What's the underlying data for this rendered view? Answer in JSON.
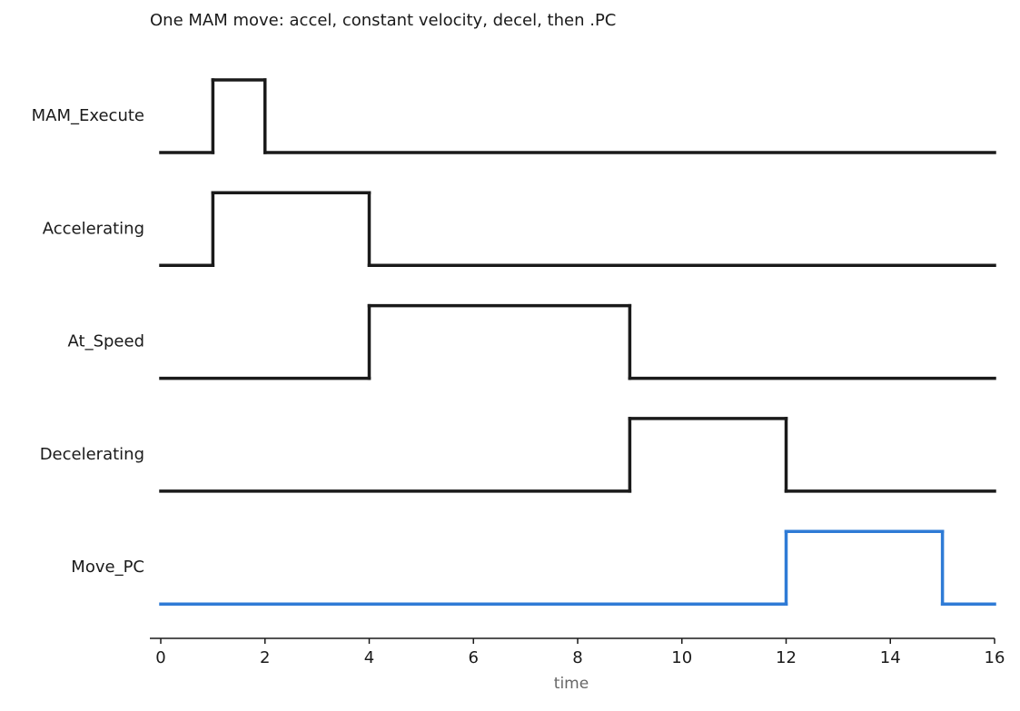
{
  "chart_data": {
    "type": "timing",
    "title": "One MAM move: accel, constant velocity, decel, then .PC",
    "x_label": "time",
    "xlim": [
      0,
      16
    ],
    "xticks": [
      0,
      2,
      4,
      6,
      8,
      10,
      12,
      14,
      16
    ],
    "ylim": [
      0,
      1
    ],
    "series": [
      {
        "name": "MAM_Execute",
        "color": "#1a1a1a",
        "x": [
          0,
          1,
          2
        ],
        "values": [
          0,
          1,
          0
        ]
      },
      {
        "name": "Accelerating",
        "color": "#1a1a1a",
        "x": [
          0,
          1,
          4
        ],
        "values": [
          0,
          1,
          0
        ]
      },
      {
        "name": "At_Speed",
        "color": "#1a1a1a",
        "x": [
          0,
          4,
          9
        ],
        "values": [
          0,
          1,
          0
        ]
      },
      {
        "name": "Decelerating",
        "color": "#1a1a1a",
        "x": [
          0,
          9,
          12
        ],
        "values": [
          0,
          1,
          0
        ]
      },
      {
        "name": "Move_PC",
        "color": "#2f7bd6",
        "x": [
          0,
          12,
          15
        ],
        "values": [
          0,
          1,
          0
        ]
      }
    ]
  }
}
